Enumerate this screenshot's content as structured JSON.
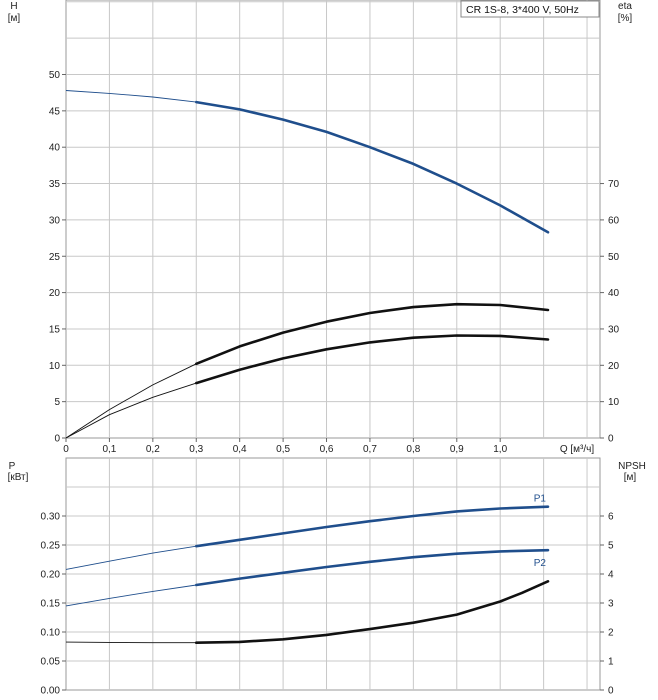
{
  "legend": {
    "label": "CR 1S-8, 3*400 V, 50Hz"
  },
  "colors": {
    "pump_blue": "#1f4e8c",
    "black": "#111111",
    "grid": "#c8c8c8"
  },
  "chart_data": [
    {
      "type": "line",
      "x_axis": {
        "label": "Q [м³/ч]",
        "range": [
          0,
          1.2
        ],
        "ticks": [
          "0",
          "0,1",
          "0,2",
          "0,3",
          "0,4",
          "0,5",
          "0,6",
          "0,7",
          "0,8",
          "0,9",
          "1,0"
        ]
      },
      "y_left": {
        "label_top": "H",
        "label_unit": "[м]",
        "range": [
          0,
          55
        ],
        "ticks": [
          "0",
          "5",
          "10",
          "15",
          "20",
          "25",
          "30",
          "35",
          "40",
          "45",
          "50"
        ]
      },
      "y_right": {
        "label_top": "eta",
        "label_unit": "[%]",
        "range": [
          0,
          110
        ],
        "ticks": [
          "0",
          "10",
          "20",
          "30",
          "40",
          "50",
          "60",
          "70"
        ]
      },
      "grid": true,
      "series": [
        {
          "axis": "left",
          "color": "#1f4e8c",
          "x": [
            0,
            0.1,
            0.2,
            0.3,
            0.4,
            0.5,
            0.6,
            0.7,
            0.8,
            0.9,
            1.0,
            1.11
          ],
          "values": [
            47.8,
            47.4,
            46.9,
            46.2,
            45.2,
            43.8,
            42.1,
            40.0,
            37.7,
            35.0,
            32.0,
            28.3
          ]
        },
        {
          "axis": "left",
          "color": "#111111",
          "x": [
            0,
            0.1,
            0.2,
            0.3,
            0.4,
            0.5,
            0.6,
            0.7,
            0.8,
            0.9,
            1.0,
            1.11
          ],
          "values": [
            0,
            3.9,
            7.3,
            10.2,
            12.6,
            14.5,
            16.0,
            17.2,
            18.0,
            18.4,
            18.3,
            17.6
          ]
        },
        {
          "axis": "right",
          "color": "#111111",
          "x": [
            0,
            0.1,
            0.2,
            0.3,
            0.4,
            0.5,
            0.6,
            0.7,
            0.8,
            0.9,
            1.0,
            1.11
          ],
          "values": [
            0,
            6.4,
            11.2,
            15.1,
            18.8,
            21.9,
            24.4,
            26.3,
            27.6,
            28.2,
            28.1,
            27.1
          ]
        }
      ]
    },
    {
      "type": "line",
      "x_axis": {
        "range": [
          0,
          1.2
        ]
      },
      "y_left": {
        "label_top": "P",
        "label_unit": "[кВт]",
        "range": [
          0,
          0.35
        ],
        "ticks": [
          "0.00",
          "0.05",
          "0.10",
          "0.15",
          "0.20",
          "0.25",
          "0.30"
        ]
      },
      "y_right": {
        "label_top": "NPSH",
        "label_unit": "[м]",
        "range": [
          0,
          7
        ],
        "ticks": [
          "0",
          "1",
          "2",
          "3",
          "4",
          "5",
          "6"
        ]
      },
      "grid": true,
      "series": [
        {
          "name": "P1",
          "axis": "left",
          "color": "#1f4e8c",
          "x": [
            0,
            0.1,
            0.2,
            0.3,
            0.4,
            0.5,
            0.6,
            0.7,
            0.8,
            0.9,
            1.0,
            1.11
          ],
          "values": [
            0.208,
            0.222,
            0.236,
            0.248,
            0.259,
            0.27,
            0.281,
            0.291,
            0.3,
            0.308,
            0.313,
            0.316
          ]
        },
        {
          "name": "P2",
          "axis": "left",
          "color": "#1f4e8c",
          "x": [
            0,
            0.1,
            0.2,
            0.3,
            0.4,
            0.5,
            0.6,
            0.7,
            0.8,
            0.9,
            1.0,
            1.11
          ],
          "values": [
            0.145,
            0.158,
            0.17,
            0.181,
            0.192,
            0.202,
            0.212,
            0.221,
            0.229,
            0.235,
            0.239,
            0.241
          ]
        },
        {
          "axis": "right",
          "color": "#111111",
          "x": [
            0,
            0.1,
            0.2,
            0.3,
            0.4,
            0.5,
            0.6,
            0.7,
            0.8,
            0.9,
            1.0,
            1.05,
            1.11
          ],
          "values": [
            1.65,
            1.64,
            1.63,
            1.63,
            1.66,
            1.75,
            1.9,
            2.1,
            2.32,
            2.6,
            3.05,
            3.35,
            3.75
          ]
        }
      ]
    }
  ]
}
